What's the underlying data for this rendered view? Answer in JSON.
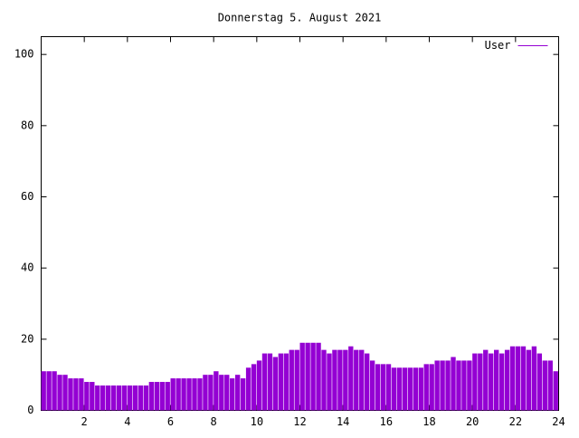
{
  "chart_data": {
    "type": "impulse",
    "title": "Donnerstag 5. August 2021",
    "series": [
      {
        "name": "User",
        "color": "#9400d3",
        "x": [
          0,
          0.25,
          0.5,
          0.75,
          1,
          1.25,
          1.5,
          1.75,
          2,
          2.25,
          2.5,
          2.75,
          3,
          3.25,
          3.5,
          3.75,
          4,
          4.25,
          4.5,
          4.75,
          5,
          5.25,
          5.5,
          5.75,
          6,
          6.25,
          6.5,
          6.75,
          7,
          7.25,
          7.5,
          7.75,
          8,
          8.25,
          8.5,
          8.75,
          9,
          9.25,
          9.5,
          9.75,
          10,
          10.25,
          10.5,
          10.75,
          11,
          11.25,
          11.5,
          11.75,
          12,
          12.25,
          12.5,
          12.75,
          13,
          13.25,
          13.5,
          13.75,
          14,
          14.25,
          14.5,
          14.75,
          15,
          15.25,
          15.5,
          15.75,
          16,
          16.25,
          16.5,
          16.75,
          17,
          17.25,
          17.5,
          17.75,
          18,
          18.25,
          18.5,
          18.75,
          19,
          19.25,
          19.5,
          19.75,
          20,
          20.25,
          20.5,
          20.75,
          21,
          21.25,
          21.5,
          21.75,
          22,
          22.25,
          22.5,
          22.75,
          23,
          23.25,
          23.5,
          23.75
        ],
        "values": [
          11,
          11,
          11,
          10,
          10,
          9,
          9,
          9,
          8,
          8,
          7,
          7,
          7,
          7,
          7,
          7,
          7,
          7,
          7,
          7,
          8,
          8,
          8,
          8,
          9,
          9,
          9,
          9,
          9,
          9,
          10,
          10,
          11,
          10,
          10,
          9,
          10,
          9,
          12,
          13,
          14,
          16,
          16,
          15,
          16,
          16,
          17,
          17,
          19,
          19,
          19,
          19,
          17,
          16,
          17,
          17,
          17,
          18,
          17,
          17,
          16,
          14,
          13,
          13,
          13,
          12,
          12,
          12,
          12,
          12,
          12,
          13,
          13,
          14,
          14,
          14,
          15,
          14,
          14,
          14,
          16,
          16,
          17,
          16,
          17,
          16,
          17,
          18,
          18,
          18,
          17,
          18,
          16,
          14,
          14,
          11
        ]
      }
    ],
    "xlim": [
      0,
      24
    ],
    "xticks": [
      2,
      4,
      6,
      8,
      10,
      12,
      14,
      16,
      18,
      20,
      22,
      24
    ],
    "ylim": [
      0,
      105
    ],
    "yticks": [
      0,
      20,
      40,
      60,
      80,
      100
    ],
    "legend": "top-right"
  }
}
